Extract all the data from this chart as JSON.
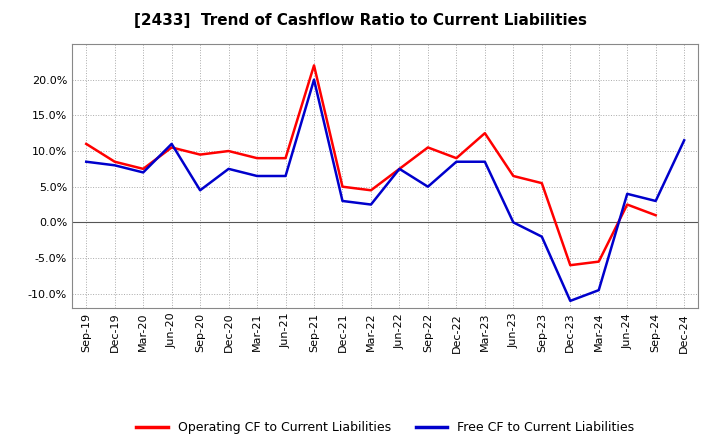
{
  "title": "[2433]  Trend of Cashflow Ratio to Current Liabilities",
  "x_labels": [
    "Sep-19",
    "Dec-19",
    "Mar-20",
    "Jun-20",
    "Sep-20",
    "Dec-20",
    "Mar-21",
    "Jun-21",
    "Sep-21",
    "Dec-21",
    "Mar-22",
    "Jun-22",
    "Sep-22",
    "Dec-22",
    "Mar-23",
    "Jun-23",
    "Sep-23",
    "Dec-23",
    "Mar-24",
    "Jun-24",
    "Sep-24",
    "Dec-24"
  ],
  "operating_cf": [
    11.0,
    8.5,
    7.5,
    10.5,
    9.5,
    10.0,
    9.0,
    9.0,
    22.0,
    5.0,
    4.5,
    7.5,
    10.5,
    9.0,
    12.5,
    6.5,
    5.5,
    -6.0,
    -5.5,
    2.5,
    1.0,
    null
  ],
  "free_cf": [
    8.5,
    8.0,
    7.0,
    11.0,
    4.5,
    7.5,
    6.5,
    6.5,
    20.0,
    3.0,
    2.5,
    7.5,
    5.0,
    8.5,
    8.5,
    0.0,
    -2.0,
    -11.0,
    -9.5,
    4.0,
    3.0,
    11.5
  ],
  "ylim": [
    -12,
    25
  ],
  "yticks": [
    -10.0,
    -5.0,
    0.0,
    5.0,
    10.0,
    15.0,
    20.0
  ],
  "operating_color": "#FF0000",
  "free_color": "#0000CC",
  "background_color": "#FFFFFF",
  "plot_bg_color": "#FFFFFF",
  "grid_color": "#AAAAAA",
  "legend_op": "Operating CF to Current Liabilities",
  "legend_free": "Free CF to Current Liabilities",
  "line_width": 1.8
}
